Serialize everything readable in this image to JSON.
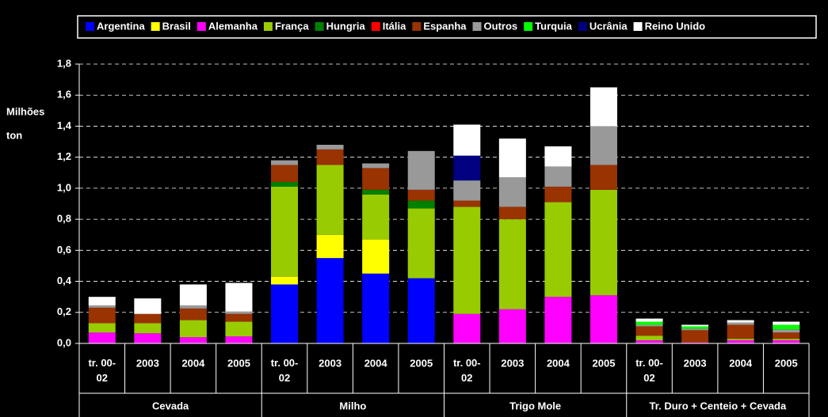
{
  "chart_data": {
    "type": "stacked-bar",
    "y_label": [
      "Milhões",
      "ton"
    ],
    "categories": [
      "tr. 00-02",
      "2003",
      "2004",
      "2005",
      "tr. 00-02",
      "2003",
      "2004",
      "2005",
      "tr. 00-02",
      "2003",
      "2004",
      "2005",
      "tr. 00-02",
      "2003",
      "2004",
      "2005"
    ],
    "groups": [
      {
        "name": "Cevada",
        "size": 4
      },
      {
        "name": "Milho",
        "size": 4
      },
      {
        "name": "Trigo Mole",
        "size": 4
      },
      {
        "name": "Tr. Duro + Centeio + Cevada",
        "size": 4
      }
    ],
    "ylim": [
      0,
      1.8
    ],
    "yticks": [
      {
        "value": 0,
        "label": "0,0"
      },
      {
        "value": 0.2,
        "label": "0,2"
      },
      {
        "value": 0.4,
        "label": "0,4"
      },
      {
        "value": 0.6,
        "label": "0,6"
      },
      {
        "value": 0.8,
        "label": "0,8"
      },
      {
        "value": 1,
        "label": "1,0"
      },
      {
        "value": 1.2,
        "label": "1,2"
      },
      {
        "value": 1.4,
        "label": "1,4"
      },
      {
        "value": 1.6,
        "label": "1,6"
      },
      {
        "value": 1.8,
        "label": "1,8"
      }
    ],
    "grid": true,
    "legend": "top",
    "series": [
      {
        "name": "Argentina",
        "color": "#0000ff",
        "values": [
          0,
          0,
          0,
          0,
          0.38,
          0.55,
          0.45,
          0.42,
          0,
          0,
          0,
          0,
          0,
          0,
          0,
          0
        ]
      },
      {
        "name": "Brasil",
        "color": "#ffff00",
        "values": [
          0,
          0,
          0,
          0,
          0.05,
          0.15,
          0.22,
          0,
          0,
          0,
          0,
          0,
          0,
          0,
          0,
          0
        ]
      },
      {
        "name": "Alemanha",
        "color": "#ff00ff",
        "values": [
          0.07,
          0.065,
          0.04,
          0.045,
          0,
          0,
          0,
          0,
          0.19,
          0.22,
          0.3,
          0.31,
          0.02,
          0.005,
          0.02,
          0.02
        ]
      },
      {
        "name": "França",
        "color": "#99cc00",
        "values": [
          0.06,
          0.065,
          0.11,
          0.095,
          0.58,
          0.45,
          0.29,
          0.45,
          0.69,
          0.58,
          0.61,
          0.68,
          0.03,
          0,
          0.01,
          0.01
        ]
      },
      {
        "name": "Hungria",
        "color": "#008000",
        "values": [
          0,
          0,
          0,
          0,
          0.03,
          0,
          0.03,
          0.05,
          0,
          0,
          0,
          0,
          0,
          0,
          0,
          0
        ]
      },
      {
        "name": "Itália",
        "color": "#ff0000",
        "values": [
          0,
          0,
          0,
          0,
          0,
          0,
          0,
          0,
          0,
          0,
          0,
          0,
          0,
          0,
          0,
          0
        ]
      },
      {
        "name": "Espanha",
        "color": "#993300",
        "values": [
          0.1,
          0.06,
          0.075,
          0.05,
          0.11,
          0.1,
          0.14,
          0.07,
          0.04,
          0.08,
          0.1,
          0.16,
          0.06,
          0.08,
          0.09,
          0.04
        ]
      },
      {
        "name": "Outros",
        "color": "#999999",
        "values": [
          0.015,
          0,
          0.02,
          0.015,
          0.03,
          0.03,
          0.03,
          0.25,
          0.13,
          0.19,
          0.13,
          0.25,
          0.01,
          0.01,
          0.015,
          0.02
        ]
      },
      {
        "name": "Turquia",
        "color": "#00ff00",
        "values": [
          0,
          0,
          0,
          0,
          0,
          0,
          0,
          0,
          0,
          0,
          0,
          0,
          0.02,
          0.015,
          0,
          0.03
        ]
      },
      {
        "name": "Ucrânia",
        "color": "#000080",
        "values": [
          0,
          0,
          0,
          0,
          0,
          0,
          0,
          0,
          0.16,
          0,
          0,
          0,
          0,
          0,
          0,
          0
        ]
      },
      {
        "name": "Reino Unido",
        "color": "#ffffff",
        "values": [
          0.055,
          0.1,
          0.135,
          0.185,
          0,
          0,
          0,
          0,
          0.2,
          0.25,
          0.13,
          0.25,
          0.02,
          0.01,
          0.015,
          0.02
        ]
      }
    ]
  }
}
